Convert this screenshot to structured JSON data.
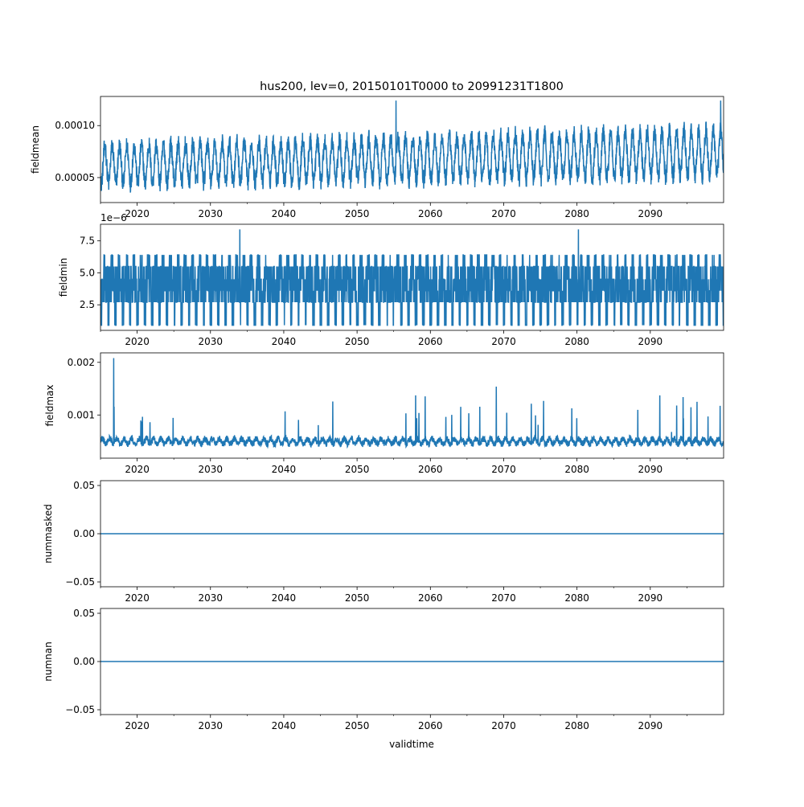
{
  "title": "hus200, lev=0, 20150101T0000 to 20991231T1800",
  "xlabel": "validtime",
  "colors": {
    "series": "#1f77b4",
    "axis": "#000000",
    "background": "#ffffff"
  },
  "chart_data": [
    {
      "type": "line",
      "name": "fieldmean",
      "ylabel": "fieldmean",
      "xlim": [
        2015.0,
        2100.0
      ],
      "ylim": [
        2.6e-05,
        0.000128
      ],
      "x_ticks": [
        2020,
        2030,
        2040,
        2050,
        2060,
        2070,
        2080,
        2090
      ],
      "x_tick_labels": [
        "2020",
        "2030",
        "2040",
        "2050",
        "2060",
        "2070",
        "2080",
        "2090"
      ],
      "y_ticks": [
        5e-05,
        0.0001
      ],
      "y_tick_labels": [
        "0.00005",
        "0.00010"
      ],
      "offset_text": "",
      "series": {
        "kind": "seasonal",
        "base_start": 6.2e-05,
        "base_end": 7.4e-05,
        "amp_start": 1.8e-05,
        "amp_end": 2.2e-05,
        "noise": 9e-06,
        "spike_peak": 0.000124,
        "spike_years": [
          2055.3,
          2099.6
        ],
        "min_value": 3.3e-05,
        "max_value": 0.000124
      }
    },
    {
      "type": "line",
      "name": "fieldmin",
      "ylabel": "fieldmin",
      "xlim": [
        2015.0,
        2100.0
      ],
      "ylim": [
        5e-07,
        8.8e-06
      ],
      "x_ticks": [
        2020,
        2030,
        2040,
        2050,
        2060,
        2070,
        2080,
        2090
      ],
      "x_tick_labels": [
        "2020",
        "2030",
        "2040",
        "2050",
        "2060",
        "2070",
        "2080",
        "2090"
      ],
      "y_ticks": [
        2.5e-06,
        5e-06,
        7.5e-06
      ],
      "y_tick_labels": [
        "2.5",
        "5.0",
        "7.5"
      ],
      "offset_text": "1e−6",
      "series": {
        "kind": "quantized",
        "levels": [
          9e-07,
          2.7e-06,
          3.6e-06,
          4.5e-06,
          5.5e-06,
          6.4e-06
        ],
        "spike_peak": 8.4e-06,
        "spike_years": [
          2034.0,
          2080.2
        ],
        "min_value": 9e-07,
        "max_value": 8.4e-06
      }
    },
    {
      "type": "line",
      "name": "fieldmax",
      "ylabel": "fieldmax",
      "xlim": [
        2015.0,
        2100.0
      ],
      "ylim": [
        0.00018,
        0.00218
      ],
      "x_ticks": [
        2020,
        2030,
        2040,
        2050,
        2060,
        2070,
        2080,
        2090
      ],
      "x_tick_labels": [
        "2020",
        "2030",
        "2040",
        "2050",
        "2060",
        "2070",
        "2080",
        "2090"
      ],
      "y_ticks": [
        0.001,
        0.002
      ],
      "y_tick_labels": [
        "0.001",
        "0.002"
      ],
      "offset_text": "",
      "series": {
        "kind": "spiky",
        "base": 0.0005,
        "amp": 5e-05,
        "noise": 6e-05,
        "spike_peak": 0.00208,
        "spike_years": [
          2016.8,
          2069.0,
          2058.0,
          2091.3
        ],
        "min_value": 0.00025,
        "max_value": 0.00208
      }
    },
    {
      "type": "line",
      "name": "nummasked",
      "ylabel": "nummasked",
      "xlim": [
        2015.0,
        2100.0
      ],
      "ylim": [
        -0.055,
        0.055
      ],
      "x_ticks": [
        2020,
        2030,
        2040,
        2050,
        2060,
        2070,
        2080,
        2090
      ],
      "x_tick_labels": [
        "2020",
        "2030",
        "2040",
        "2050",
        "2060",
        "2070",
        "2080",
        "2090"
      ],
      "y_ticks": [
        -0.05,
        0.0,
        0.05
      ],
      "y_tick_labels": [
        "−0.05",
        "0.00",
        "0.05"
      ],
      "offset_text": "",
      "series": {
        "kind": "constant",
        "value": 0.0
      }
    },
    {
      "type": "line",
      "name": "numnan",
      "ylabel": "numnan",
      "xlim": [
        2015.0,
        2100.0
      ],
      "ylim": [
        -0.055,
        0.055
      ],
      "x_ticks": [
        2020,
        2030,
        2040,
        2050,
        2060,
        2070,
        2080,
        2090
      ],
      "x_tick_labels": [
        "2020",
        "2030",
        "2040",
        "2050",
        "2060",
        "2070",
        "2080",
        "2090"
      ],
      "y_ticks": [
        -0.05,
        0.0,
        0.05
      ],
      "y_tick_labels": [
        "−0.05",
        "0.00",
        "0.05"
      ],
      "offset_text": "",
      "series": {
        "kind": "constant",
        "value": 0.0
      }
    }
  ]
}
